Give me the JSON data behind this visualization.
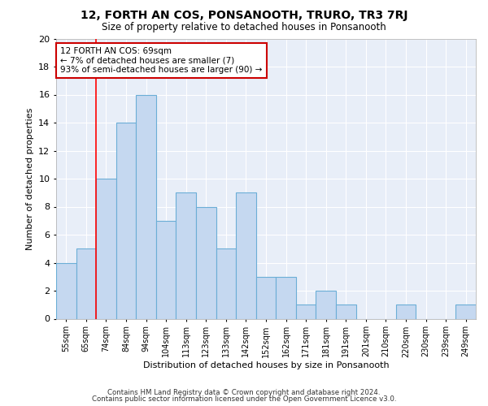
{
  "title": "12, FORTH AN COS, PONSANOOTH, TRURO, TR3 7RJ",
  "subtitle": "Size of property relative to detached houses in Ponsanooth",
  "xlabel": "Distribution of detached houses by size in Ponsanooth",
  "ylabel": "Number of detached properties",
  "bar_labels": [
    "55sqm",
    "65sqm",
    "74sqm",
    "84sqm",
    "94sqm",
    "104sqm",
    "113sqm",
    "123sqm",
    "133sqm",
    "142sqm",
    "152sqm",
    "162sqm",
    "171sqm",
    "181sqm",
    "191sqm",
    "201sqm",
    "210sqm",
    "220sqm",
    "230sqm",
    "239sqm",
    "249sqm"
  ],
  "bar_values": [
    4,
    5,
    10,
    14,
    16,
    7,
    9,
    8,
    5,
    9,
    3,
    3,
    1,
    2,
    1,
    0,
    0,
    1,
    0,
    0,
    1
  ],
  "bar_color": "#c5d8f0",
  "bar_edge_color": "#6baed6",
  "ylim": [
    0,
    20
  ],
  "yticks": [
    0,
    2,
    4,
    6,
    8,
    10,
    12,
    14,
    16,
    18,
    20
  ],
  "property_line_x": 1.5,
  "annotation_text": "12 FORTH AN COS: 69sqm\n← 7% of detached houses are smaller (7)\n93% of semi-detached houses are larger (90) →",
  "annotation_box_color": "#ffffff",
  "annotation_box_edge_color": "#cc0000",
  "footer_line1": "Contains HM Land Registry data © Crown copyright and database right 2024.",
  "footer_line2": "Contains public sector information licensed under the Open Government Licence v3.0.",
  "bg_color": "#ffffff",
  "plot_bg_color": "#e8eef8",
  "grid_color": "#ffffff"
}
